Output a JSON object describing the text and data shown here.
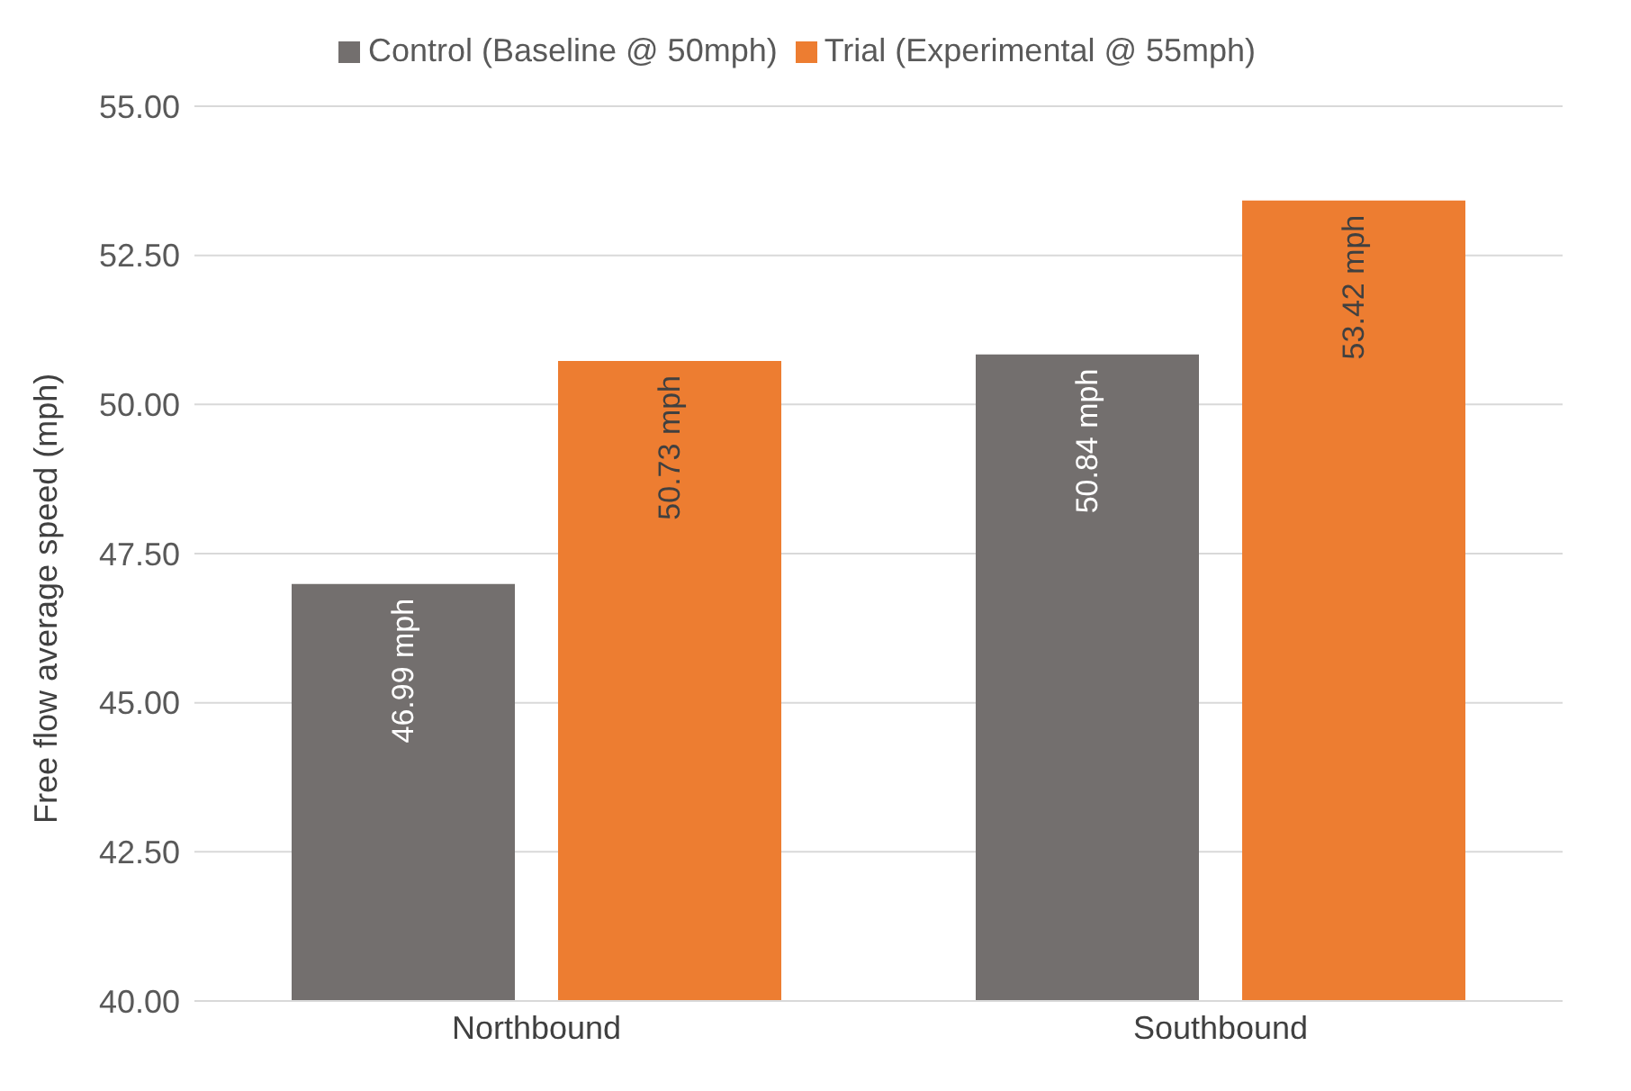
{
  "chart_data": {
    "type": "bar",
    "ylabel": "Free flow average speed (mph)",
    "categories": [
      "Northbound",
      "Southbound"
    ],
    "series": [
      {
        "name": "Control (Baseline @ 50mph)",
        "color": "#736f6e",
        "values": [
          46.99,
          50.84
        ],
        "value_labels": [
          "46.99 mph",
          "50.84 mph"
        ]
      },
      {
        "name": "Trial (Experimental @ 55mph)",
        "color": "#ed7d31",
        "values": [
          50.73,
          53.42
        ],
        "value_labels": [
          "50.73 mph",
          "53.42 mph"
        ]
      }
    ],
    "ylim": [
      40,
      55
    ],
    "yticks": [
      {
        "value": 40,
        "label": "40.00"
      },
      {
        "value": 42.5,
        "label": "42.50"
      },
      {
        "value": 45,
        "label": "45.00"
      },
      {
        "value": 47.5,
        "label": "47.50"
      },
      {
        "value": 50,
        "label": "50.00"
      },
      {
        "value": 52.5,
        "label": "52.50"
      },
      {
        "value": 55,
        "label": "55.00"
      }
    ],
    "grid": "y",
    "legend": "top"
  }
}
